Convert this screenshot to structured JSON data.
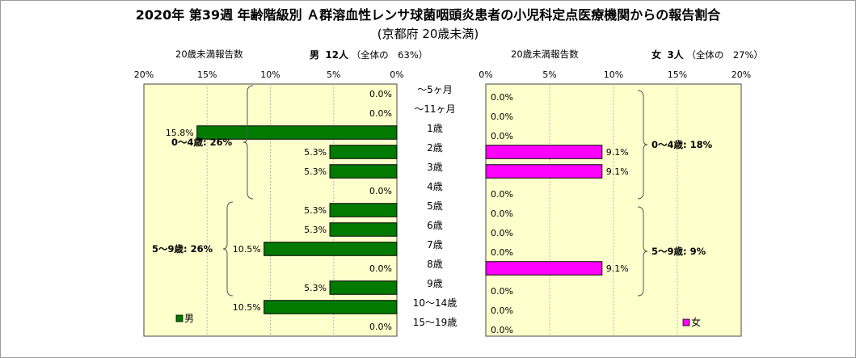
{
  "title": "2020年 第39週 年齢階級別 Ａ群溶血性レンサ球菌咽頭炎患者の小児科定点医療機関からの報告割合",
  "subtitle": "(京都府 20歳未満)",
  "male_header": {
    "axis_caption": "20歳未満報告数",
    "sex": "男",
    "count": "12人",
    "share": "（全体の　63%）"
  },
  "female_header": {
    "axis_caption": "20歳未満報告数",
    "sex": "女",
    "count": "3人",
    "share": "（全体の　27%）"
  },
  "chart_data": [
    {
      "type": "bar",
      "orientation": "horizontal",
      "direction": "right-to-left",
      "series": [
        {
          "name": "男",
          "values": [
            0.0,
            0.0,
            15.8,
            5.3,
            5.3,
            0.0,
            5.3,
            5.3,
            10.5,
            0.0,
            5.3,
            10.5,
            0.0
          ]
        }
      ],
      "categories": [
        "～5ヶ月",
        "～11ヶ月",
        "1歳",
        "2歳",
        "3歳",
        "4歳",
        "5歳",
        "6歳",
        "7歳",
        "8歳",
        "9歳",
        "10～14歳",
        "15～19歳"
      ],
      "value_labels": [
        "0.0%",
        "0.0%",
        "15.8%",
        "5.3%",
        "5.3%",
        "0.0%",
        "5.3%",
        "5.3%",
        "10.5%",
        "0.0%",
        "5.3%",
        "10.5%",
        "0.0%"
      ],
      "xlim": [
        0,
        20
      ],
      "ticks": [
        "20%",
        "15%",
        "10%",
        "5%",
        "0%"
      ],
      "legend": "男",
      "legend_position": "bottom-left",
      "bar_color": "#007a00",
      "plot_background": "#ffffcc",
      "grid": true,
      "group_annotations": [
        "0～4歳: 26%",
        "5～9歳: 26%"
      ]
    },
    {
      "type": "bar",
      "orientation": "horizontal",
      "direction": "left-to-right",
      "series": [
        {
          "name": "女",
          "values": [
            0.0,
            0.0,
            0.0,
            9.1,
            9.1,
            0.0,
            0.0,
            0.0,
            0.0,
            9.1,
            0.0,
            0.0,
            0.0
          ]
        }
      ],
      "categories": [
        "～5ヶ月",
        "～11ヶ月",
        "1歳",
        "2歳",
        "3歳",
        "4歳",
        "5歳",
        "6歳",
        "7歳",
        "8歳",
        "9歳",
        "10～14歳",
        "15～19歳"
      ],
      "value_labels": [
        "0.0%",
        "0.0%",
        "0.0%",
        "9.1%",
        "9.1%",
        "0.0%",
        "0.0%",
        "0.0%",
        "0.0%",
        "9.1%",
        "0.0%",
        "0.0%",
        "0.0%"
      ],
      "xlim": [
        0,
        20
      ],
      "ticks": [
        "0%",
        "5%",
        "10%",
        "15%",
        "20%"
      ],
      "legend": "女",
      "legend_position": "bottom-right",
      "bar_color": "#ff00ff",
      "plot_background": "#ffffcc",
      "grid": true,
      "group_annotations": [
        "0～4歳: 18%",
        "5～9歳: 9%"
      ]
    }
  ]
}
